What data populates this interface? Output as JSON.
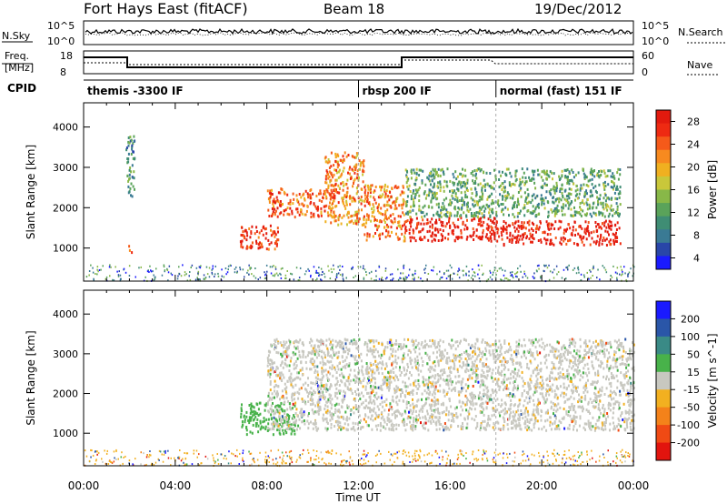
{
  "header": {
    "title": "Fort Hays East (fitACF)",
    "beam": "Beam 18",
    "date": "19/Dec/2012"
  },
  "params": {
    "nsky_label": "N.Sky",
    "nsearch_label": "N.Search",
    "freq_label_line1": "Freq.",
    "freq_label_line2": "[MHz]",
    "nave_label": "Nave",
    "cpid_label": "CPID",
    "nsky_ticks": [
      "10^5",
      "10^0"
    ],
    "nsearch_ticks": [
      "10^5",
      "10^0"
    ],
    "freq_ticks": [
      "18",
      "8"
    ],
    "nave_ticks": [
      "60",
      "0"
    ]
  },
  "cpid": [
    {
      "label": "themis -3300 IF",
      "start_hour": 0
    },
    {
      "label": "rbsp 200 IF",
      "start_hour": 12
    },
    {
      "label": "normal (fast) 151 IF",
      "start_hour": 18
    }
  ],
  "chart_data": [
    {
      "type": "heatmap",
      "panel": "power",
      "xlabel": "Time UT",
      "ylabel": "Slant Range [km]",
      "xlim": [
        0,
        24
      ],
      "ylim": [
        180,
        4600
      ],
      "yticks": [
        "1000",
        "2000",
        "3000",
        "4000"
      ],
      "colorbar_label": "Power [dB]",
      "colorbar_ticks": [
        "4",
        "8",
        "12",
        "16",
        "20",
        "24",
        "28"
      ],
      "colorbar_colors": [
        "#1a1aff",
        "#2946a8",
        "#3a7a94",
        "#3f8d74",
        "#5aa35a",
        "#88b848",
        "#c9c73a",
        "#f0b020",
        "#f78a1f",
        "#f55a1a",
        "#ee2a12",
        "#e21a0e"
      ],
      "features": [
        {
          "hours": [
            1.8,
            2.2
          ],
          "range_km": [
            2300,
            3800
          ],
          "level_db": 10
        },
        {
          "hours": [
            1.9,
            2.1
          ],
          "range_km": [
            900,
            1100
          ],
          "level_db": 22
        },
        {
          "hours": [
            6.8,
            8.5
          ],
          "range_km": [
            1000,
            1600
          ],
          "level_db": 26
        },
        {
          "hours": [
            8.0,
            11.0
          ],
          "range_km": [
            1800,
            2500
          ],
          "level_db": 24
        },
        {
          "hours": [
            10.5,
            12.2
          ],
          "range_km": [
            1600,
            3400
          ],
          "level_db": 20
        },
        {
          "hours": [
            12.2,
            14.0
          ],
          "range_km": [
            1200,
            2600
          ],
          "level_db": 20
        },
        {
          "hours": [
            14.0,
            18.0
          ],
          "range_km": [
            1200,
            1800
          ],
          "level_db": 28
        },
        {
          "hours": [
            18.0,
            23.4
          ],
          "range_km": [
            1100,
            1700
          ],
          "level_db": 28
        },
        {
          "hours": [
            14.0,
            23.4
          ],
          "range_km": [
            1800,
            3000
          ],
          "level_db": 12
        }
      ]
    },
    {
      "type": "heatmap",
      "panel": "velocity",
      "xlabel": "Time UT",
      "ylabel": "Slant Range [km]",
      "xlim": [
        0,
        24
      ],
      "ylim": [
        180,
        4600
      ],
      "xticks": [
        "00:00",
        "04:00",
        "08:00",
        "12:00",
        "16:00",
        "20:00",
        "00:00"
      ],
      "yticks": [
        "1000",
        "2000",
        "3000",
        "4000"
      ],
      "colorbar_label": "Velocity [m s^-1]",
      "colorbar_ticks": [
        "200",
        "100",
        "50",
        "15",
        "-15",
        "-50",
        "-100",
        "-200"
      ],
      "colorbar_colors": [
        "#1a1aff",
        "#2a56a8",
        "#3a8a86",
        "#48b24a",
        "#c8c8c0",
        "#f2b020",
        "#f4821a",
        "#f04a14",
        "#e2140e"
      ],
      "features": [
        {
          "hours": [
            6.8,
            9.2
          ],
          "range_km": [
            1000,
            1800
          ],
          "velocity": 50
        },
        {
          "hours": [
            8.0,
            24.0
          ],
          "range_km": [
            1100,
            3400
          ],
          "velocity": 0
        }
      ]
    }
  ]
}
